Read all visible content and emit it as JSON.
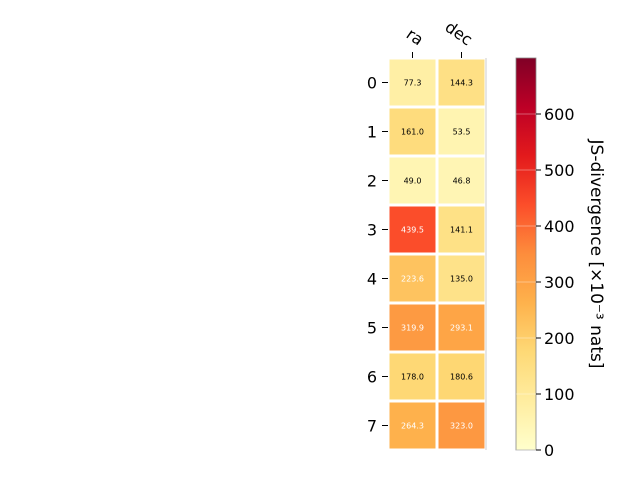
{
  "chart_data": {
    "type": "heatmap",
    "title": "",
    "columns": [
      "ra",
      "dec"
    ],
    "rows": [
      "0",
      "1",
      "2",
      "3",
      "4",
      "5",
      "6",
      "7"
    ],
    "values": [
      [
        77.3,
        144.3
      ],
      [
        161.0,
        53.5
      ],
      [
        49.0,
        46.8
      ],
      [
        439.5,
        141.1
      ],
      [
        223.6,
        135.0
      ],
      [
        319.9,
        293.1
      ],
      [
        178.0,
        180.6
      ],
      [
        264.3,
        323.0
      ]
    ],
    "colorbar": {
      "label": "JS-divergence [×10⁻³ nats]",
      "range": [
        0,
        700
      ],
      "ticks": [
        "0",
        "100",
        "200",
        "300",
        "400",
        "500",
        "600"
      ],
      "colormap": "YlOrRd"
    },
    "grid": false
  }
}
